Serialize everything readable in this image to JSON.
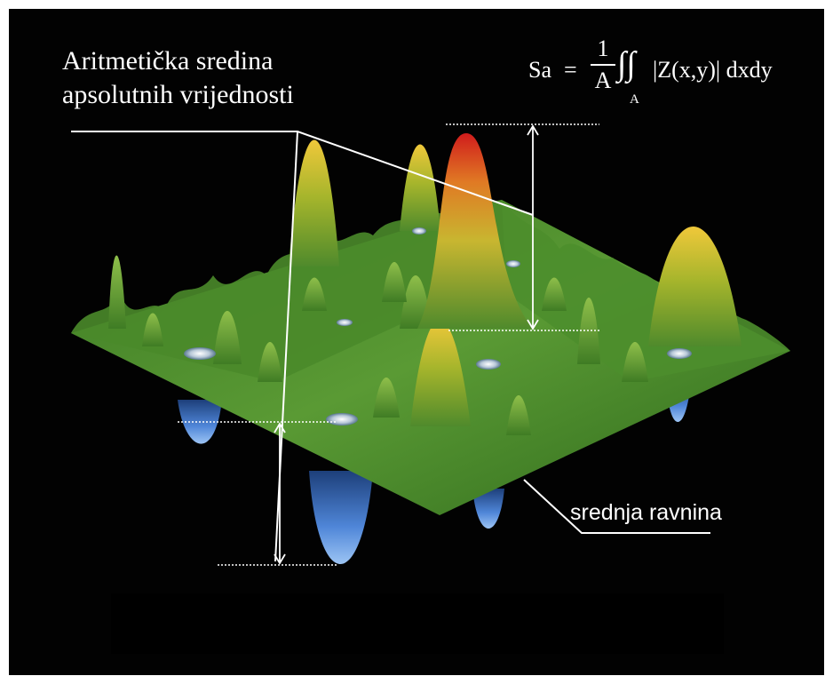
{
  "labels": {
    "title_line1": "Aritmetička sredina",
    "title_line2": "apsolutnih vrijednosti",
    "mean_plane": "srednja ravnina"
  },
  "formula": {
    "lhs": "Sa",
    "equals": "=",
    "numerator": "1",
    "denominator": "A",
    "integral": "∫∫",
    "subscript": "A",
    "integrand": "|Z(x,y)| dxdy"
  },
  "colors": {
    "background": "#020202",
    "surface_green": "#4f8a2c",
    "peak_yellow": "#e0c12a",
    "peak_red": "#d42020",
    "valley_blue": "#3f6fc4",
    "annotation": "#ffffff"
  }
}
